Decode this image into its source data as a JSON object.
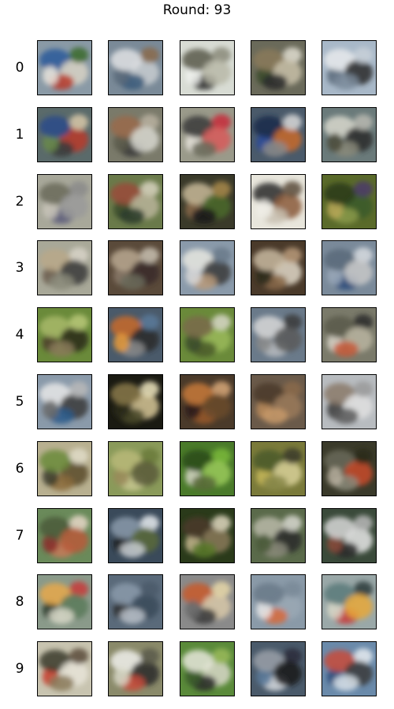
{
  "title": "Round: 93",
  "row_labels": [
    "0",
    "1",
    "2",
    "3",
    "4",
    "5",
    "6",
    "7",
    "8",
    "9"
  ],
  "tiles": [
    [
      {
        "bg": "#8a9aa6",
        "blobs": [
          "#2a5a9a",
          "#d8d2c4",
          "#b83a2a",
          "#3a6a2a",
          "#e8e4dc"
        ]
      },
      {
        "bg": "#7a8a98",
        "blobs": [
          "#c8ccd0",
          "#3a5a7a",
          "#8a6a4a",
          "#5a6a7a",
          "#e0e2e4"
        ]
      },
      {
        "bg": "#d8dcd4",
        "blobs": [
          "#2a2a2a",
          "#8a8a7a",
          "#f0f2ee",
          "#5a5a4a",
          "#b8b8a8"
        ]
      },
      {
        "bg": "#6a6a5a",
        "blobs": [
          "#e0ddd0",
          "#3a4a2a",
          "#8a7a5a",
          "#c8c0a8",
          "#2a2a2a"
        ]
      },
      {
        "bg": "#a8b8c8",
        "blobs": [
          "#5a6a7a",
          "#e8eaec",
          "#2a2a2a",
          "#7a8a9a",
          "#c8d0d8"
        ]
      }
    ],
    [
      {
        "bg": "#5a6a6a",
        "blobs": [
          "#b83a2a",
          "#3a3a3a",
          "#d8c8a8",
          "#6a8a4a",
          "#2a4a8a"
        ]
      },
      {
        "bg": "#7a7a6a",
        "blobs": [
          "#3a3a3a",
          "#b8b0a0",
          "#5a5a4a",
          "#9a6a4a",
          "#d8d8d0"
        ]
      },
      {
        "bg": "#9a9a8a",
        "blobs": [
          "#c8283a",
          "#e8e4dc",
          "#3a3a3a",
          "#d85a5a",
          "#6a6a5a"
        ]
      },
      {
        "bg": "#4a5a6a",
        "blobs": [
          "#2a4a9a",
          "#1a2a4a",
          "#c86a2a",
          "#8a8a8a",
          "#d8d8d8"
        ]
      },
      {
        "bg": "#6a7a7a",
        "blobs": [
          "#d8d8cc",
          "#2a2a2a",
          "#8a8a7a",
          "#b8b8b0",
          "#4a4a3a"
        ]
      }
    ],
    [
      {
        "bg": "#a8a89a",
        "blobs": [
          "#5a5a7a",
          "#8a8a8a",
          "#c8c4b8",
          "#6a6a5a",
          "#9a9a9a"
        ]
      },
      {
        "bg": "#6a7a4a",
        "blobs": [
          "#d8d4c0",
          "#3a4a2a",
          "#9a4a3a",
          "#b8b49a",
          "#2a3a2a"
        ]
      },
      {
        "bg": "#3a3a2a",
        "blobs": [
          "#8a6a4a",
          "#c8b898",
          "#4a6a2a",
          "#1a1a1a",
          "#a8884a"
        ]
      },
      {
        "bg": "#e8e6dc",
        "blobs": [
          "#2a2a2a",
          "#8a5a3a",
          "#c8c0b0",
          "#5a4a3a",
          "#f0eee8"
        ]
      },
      {
        "bg": "#5a6a2a",
        "blobs": [
          "#3a5a2a",
          "#8a9a4a",
          "#4a3a6a",
          "#b8a858",
          "#2a3a1a"
        ]
      }
    ],
    [
      {
        "bg": "#a8a898",
        "blobs": [
          "#d8d4c8",
          "#6a5a4a",
          "#b8a888",
          "#3a3a3a",
          "#8a8a7a"
        ]
      },
      {
        "bg": "#5a4a3a",
        "blobs": [
          "#8a7a6a",
          "#b8a890",
          "#3a2a2a",
          "#6a6a5a",
          "#c8c0b0"
        ]
      },
      {
        "bg": "#8a9aaa",
        "blobs": [
          "#e8e8e0",
          "#3a3a3a",
          "#b89a7a",
          "#6a7a8a",
          "#d8d8d8"
        ]
      },
      {
        "bg": "#4a3a2a",
        "blobs": [
          "#e0d8c8",
          "#8a6a4a",
          "#b89a7a",
          "#2a2a1a",
          "#c8b8a0"
        ]
      },
      {
        "bg": "#7a8a9a",
        "blobs": [
          "#2a4a7a",
          "#d8dce0",
          "#9aa8b8",
          "#5a6a7a",
          "#c8c8c8"
        ]
      }
    ],
    [
      {
        "bg": "#6a8a3a",
        "blobs": [
          "#4a3a2a",
          "#a8b86a",
          "#2a2a1a",
          "#8a7a5a",
          "#b8c878"
        ]
      },
      {
        "bg": "#4a5a6a",
        "blobs": [
          "#c86a2a",
          "#2a2a2a",
          "#8a8a8a",
          "#5a7a9a",
          "#e89a3a"
        ]
      },
      {
        "bg": "#6a8a3a",
        "blobs": [
          "#9aba5a",
          "#4a5a2a",
          "#d8d8c8",
          "#3a4a2a",
          "#7a6a4a"
        ]
      },
      {
        "bg": "#6a7a8a",
        "blobs": [
          "#b8bcc0",
          "#3a3a3a",
          "#8a8a8a",
          "#d8d8d8",
          "#5a5a5a"
        ]
      },
      {
        "bg": "#7a7a6a",
        "blobs": [
          "#2a2a2a",
          "#d8d4c8",
          "#5a5a4a",
          "#b8b4a0",
          "#c85a3a"
        ]
      }
    ],
    [
      {
        "bg": "#8a9aaa",
        "blobs": [
          "#e8e8e8",
          "#3a3a3a",
          "#2a5a8a",
          "#b8b8b8",
          "#6a6a6a"
        ]
      },
      {
        "bg": "#1a1a12",
        "blobs": [
          "#d8c898",
          "#4a4a2a",
          "#f0e8c0",
          "#2a2a1a",
          "#8a7a4a"
        ]
      },
      {
        "bg": "#4a3a2a",
        "blobs": [
          "#9a5a2a",
          "#d8a878",
          "#2a1a1a",
          "#c87a3a",
          "#6a4a2a"
        ]
      },
      {
        "bg": "#6a5a4a",
        "blobs": [
          "#8a6a4a",
          "#b88a5a",
          "#4a3a2a",
          "#9a7a5a",
          "#c89a6a"
        ]
      },
      {
        "bg": "#b8bcc0",
        "blobs": [
          "#3a3a3a",
          "#8a7a6a",
          "#e0e0e0",
          "#5a5a5a",
          "#9a9a9a"
        ]
      }
    ],
    [
      {
        "bg": "#b8b090",
        "blobs": [
          "#5a4a2a",
          "#8a6a3a",
          "#e0dcc8",
          "#3a3a2a",
          "#6a8a3a"
        ]
      },
      {
        "bg": "#8a9a5a",
        "blobs": [
          "#c8c890",
          "#6a7a3a",
          "#9a8a5a",
          "#b8b878",
          "#5a5a3a"
        ]
      },
      {
        "bg": "#4a7a2a",
        "blobs": [
          "#7ab83a",
          "#d8d8c8",
          "#2a4a1a",
          "#9aca5a",
          "#5a6a3a"
        ]
      },
      {
        "bg": "#7a7a3a",
        "blobs": [
          "#c8b85a",
          "#4a5a2a",
          "#d8d098",
          "#8a8a4a",
          "#3a3a2a"
        ]
      },
      {
        "bg": "#3a3a2a",
        "blobs": [
          "#6a6a5a",
          "#c84a2a",
          "#8a8a7a",
          "#2a2a1a",
          "#b8b0a0"
        ]
      }
    ],
    [
      {
        "bg": "#6a8a5a",
        "blobs": [
          "#c87a5a",
          "#e8d8c8",
          "#8a2a2a",
          "#4a5a3a",
          "#b85a3a"
        ]
      },
      {
        "bg": "#3a4a5a",
        "blobs": [
          "#e8ecf0",
          "#1a1a1a",
          "#8a9aaa",
          "#5a6a3a",
          "#c8ccd0"
        ]
      },
      {
        "bg": "#2a3a1a",
        "blobs": [
          "#c8b890",
          "#4a3a2a",
          "#8a7a5a",
          "#5a7a2a",
          "#e0d8c0"
        ]
      },
      {
        "bg": "#5a6a4a",
        "blobs": [
          "#b8b8a8",
          "#2a2a2a",
          "#8a8a7a",
          "#d8d8d0",
          "#4a5a3a"
        ]
      },
      {
        "bg": "#3a4a3a",
        "blobs": [
          "#e8e8e8",
          "#2a2a2a",
          "#b8b8b8",
          "#8a4a3a",
          "#d8d8d8"
        ]
      }
    ],
    [
      {
        "bg": "#8a9a8a",
        "blobs": [
          "#c83a3a",
          "#2a3a2a",
          "#e8a84a",
          "#5a7a5a",
          "#d8d8c8"
        ]
      },
      {
        "bg": "#5a6a7a",
        "blobs": [
          "#2a2a2a",
          "#8a9aaa",
          "#3a4a5a",
          "#b8c0c8",
          "#4a5a6a"
        ]
      },
      {
        "bg": "#8a8a8a",
        "blobs": [
          "#c85a2a",
          "#d8c8a8",
          "#3a3a3a",
          "#e8d8a8",
          "#6a6a6a"
        ]
      },
      {
        "bg": "#8a9aa8",
        "blobs": [
          "#9aa8b4",
          "#d86a3a",
          "#7a8a98",
          "#e8e8e8",
          "#6a7a88"
        ]
      },
      {
        "bg": "#9aa8a8",
        "blobs": [
          "#c83a3a",
          "#2a3a3a",
          "#d8d8c8",
          "#5a7a7a",
          "#e8a83a"
        ]
      }
    ],
    [
      {
        "bg": "#c8c4b0",
        "blobs": [
          "#c83a2a",
          "#3a3a2a",
          "#e8e4d8",
          "#8a7a5a",
          "#5a4a3a"
        ]
      },
      {
        "bg": "#8a8a6a",
        "blobs": [
          "#f0f0ec",
          "#2a2a2a",
          "#c84a3a",
          "#5a5a4a",
          "#d8d8c8"
        ]
      },
      {
        "bg": "#5a8a3a",
        "blobs": [
          "#d8d8c8",
          "#2a2a2a",
          "#9aba5a",
          "#3a5a2a",
          "#e8e8dc"
        ]
      },
      {
        "bg": "#4a5a6a",
        "blobs": [
          "#d8dce0",
          "#2a2a3a",
          "#5a7a9a",
          "#9aa0a8",
          "#1a1a1a"
        ]
      },
      {
        "bg": "#6a8aaa",
        "blobs": [
          "#e8ecf0",
          "#2a4a7a",
          "#c84a3a",
          "#3a3a3a",
          "#d8e0e8"
        ]
      }
    ]
  ]
}
